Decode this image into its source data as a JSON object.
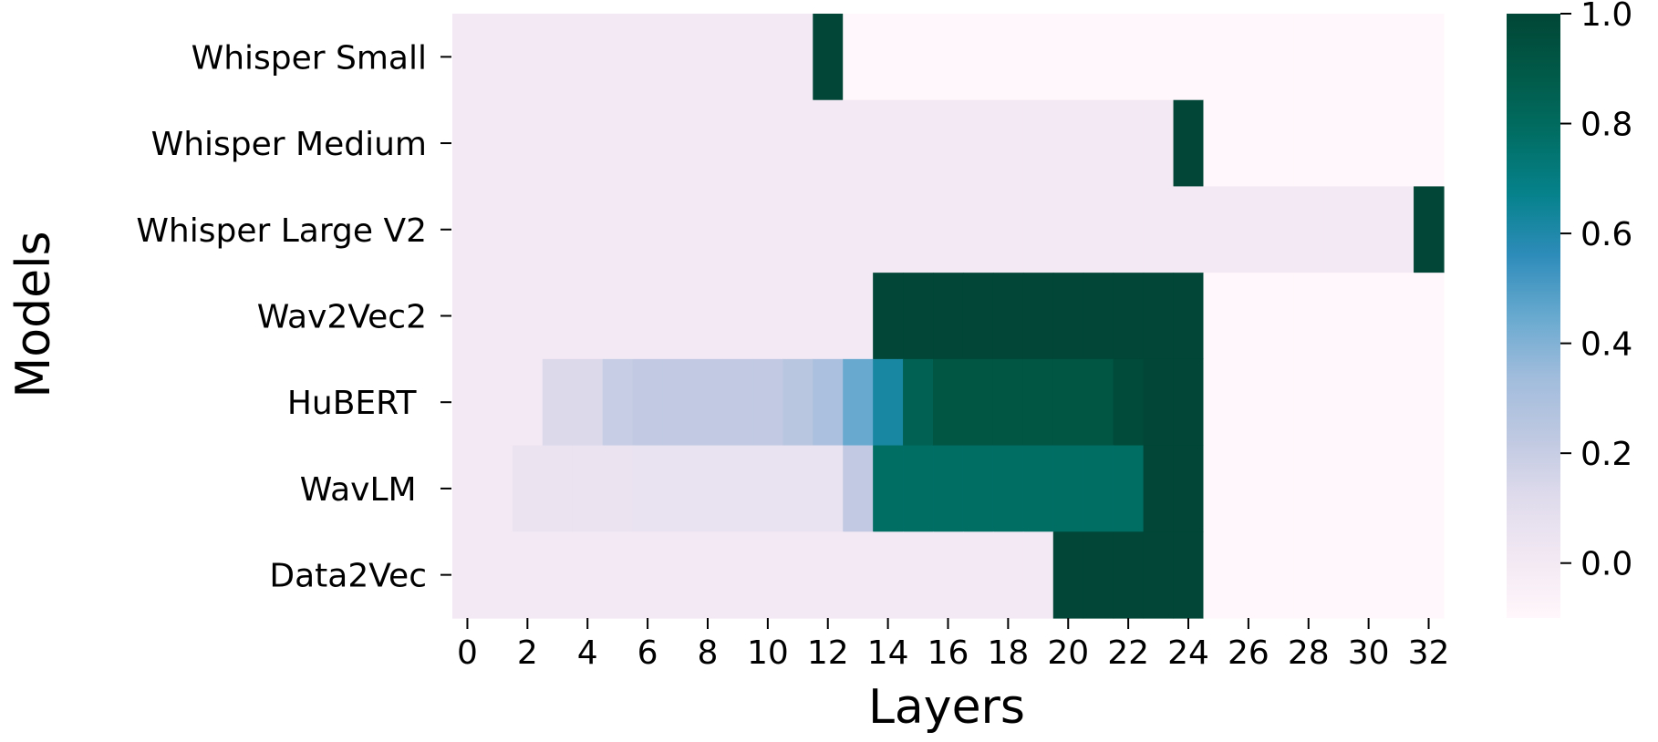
{
  "chart_data": {
    "type": "heatmap",
    "title": "",
    "xlabel": "Layers",
    "ylabel": "Models",
    "rows": [
      "Whisper Small",
      "Whisper Medium",
      "Whisper Large V2",
      "Wav2Vec2",
      "HuBERT",
      "WavLM",
      "Data2Vec"
    ],
    "row_labels": [
      "Whisper Small",
      "Whisper Medium",
      "Whisper Large V2",
      "Wav2Vec2",
      "HuBERT ",
      "WavLM ",
      "Data2Vec"
    ],
    "x_range": [
      0,
      32
    ],
    "x_ticks": [
      "0",
      "2",
      "4",
      "6",
      "8",
      "10",
      "12",
      "14",
      "16",
      "18",
      "20",
      "22",
      "24",
      "26",
      "28",
      "30",
      "32"
    ],
    "colorbar": {
      "range": [
        -0.1,
        1.0
      ],
      "ticks": [
        "0.0",
        "0.2",
        "0.4",
        "0.6",
        "0.8",
        "1.0"
      ],
      "colormap": "PuBuGn"
    },
    "values": [
      [
        0.0,
        0.0,
        0.0,
        0.0,
        0.0,
        0.0,
        0.0,
        0.0,
        0.0,
        0.0,
        0.0,
        0.0,
        1.0,
        -0.1,
        -0.1,
        -0.1,
        -0.1,
        -0.1,
        -0.1,
        -0.1,
        -0.1,
        -0.1,
        -0.1,
        -0.1,
        -0.1,
        -0.1,
        -0.1,
        -0.1,
        -0.1,
        -0.1,
        -0.1,
        -0.1,
        -0.1
      ],
      [
        0.0,
        0.0,
        0.0,
        0.0,
        0.0,
        0.0,
        0.0,
        0.0,
        0.0,
        0.0,
        0.0,
        0.0,
        0.0,
        0.0,
        0.0,
        0.0,
        0.0,
        0.0,
        0.0,
        0.0,
        0.0,
        0.0,
        0.0,
        0.0,
        1.0,
        -0.1,
        -0.1,
        -0.1,
        -0.1,
        -0.1,
        -0.1,
        -0.1,
        -0.1
      ],
      [
        0.0,
        0.0,
        0.0,
        0.0,
        0.0,
        0.0,
        0.0,
        0.0,
        0.0,
        0.0,
        0.0,
        0.0,
        0.0,
        0.0,
        0.0,
        0.0,
        0.0,
        0.0,
        0.0,
        0.0,
        0.0,
        0.0,
        0.0,
        0.0,
        0.0,
        0.0,
        0.0,
        0.0,
        0.0,
        0.0,
        0.0,
        0.0,
        1.0
      ],
      [
        0.0,
        0.0,
        0.0,
        0.0,
        0.0,
        0.0,
        0.0,
        0.0,
        0.0,
        0.0,
        0.0,
        0.0,
        0.0,
        0.0,
        1.0,
        1.0,
        1.0,
        1.0,
        1.0,
        1.0,
        1.0,
        1.0,
        1.0,
        1.0,
        1.0,
        -0.1,
        -0.1,
        -0.1,
        -0.1,
        -0.1,
        -0.1,
        -0.1,
        -0.1
      ],
      [
        0.0,
        0.0,
        0.0,
        0.13,
        0.13,
        0.2,
        0.22,
        0.22,
        0.22,
        0.22,
        0.22,
        0.25,
        0.3,
        0.45,
        0.62,
        0.85,
        0.92,
        0.92,
        0.92,
        0.92,
        0.92,
        0.92,
        0.97,
        1.0,
        1.0,
        -0.1,
        -0.1,
        -0.1,
        -0.1,
        -0.1,
        -0.1,
        -0.1,
        -0.1
      ],
      [
        0.0,
        0.0,
        0.05,
        0.05,
        0.05,
        0.05,
        0.06,
        0.06,
        0.06,
        0.06,
        0.06,
        0.06,
        0.06,
        0.22,
        0.78,
        0.78,
        0.78,
        0.78,
        0.78,
        0.78,
        0.78,
        0.78,
        0.78,
        1.0,
        1.0,
        -0.1,
        -0.1,
        -0.1,
        -0.1,
        -0.1,
        -0.1,
        -0.1,
        -0.1
      ],
      [
        0.0,
        0.0,
        0.0,
        0.0,
        0.0,
        0.0,
        0.0,
        0.0,
        0.0,
        0.0,
        0.0,
        0.0,
        0.0,
        0.0,
        0.0,
        0.0,
        0.0,
        0.0,
        0.0,
        0.0,
        1.0,
        1.0,
        1.0,
        1.0,
        1.0,
        -0.1,
        -0.1,
        -0.1,
        -0.1,
        -0.1,
        -0.1,
        -0.1,
        -0.1
      ]
    ]
  }
}
